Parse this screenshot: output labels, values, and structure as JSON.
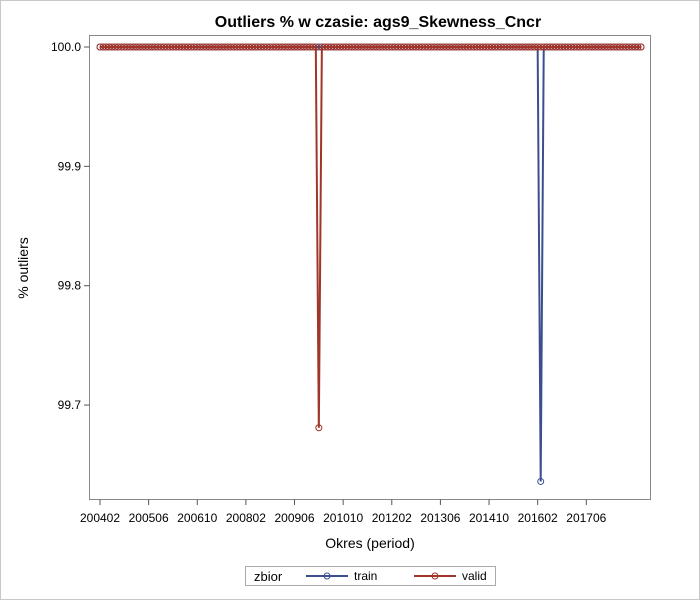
{
  "chart_data": {
    "type": "line",
    "title": "Outliers % w czasie: ags9_Skewness_Cncr",
    "xlabel": "Okres (period)",
    "ylabel": "% outliers",
    "x_tick_labels": [
      "200402",
      "200506",
      "200610",
      "200802",
      "200906",
      "201010",
      "201202",
      "201306",
      "201410",
      "201602",
      "201706"
    ],
    "y_tick_labels": [
      "99.7",
      "99.8",
      "99.9",
      "100.0"
    ],
    "ylim": [
      99.628,
      100.0
    ],
    "x_start": "200402",
    "x_end": "201812",
    "legend": {
      "title": "zbior",
      "placement": "bottom-center"
    },
    "grid": false,
    "series": [
      {
        "name": "train",
        "color": "#3b4f8f",
        "baseline": 100.0,
        "dips": [
          {
            "period": "201603",
            "value": 99.636
          }
        ]
      },
      {
        "name": "valid",
        "color": "#a0352a",
        "baseline": 100.0,
        "dips": [
          {
            "period": "201002",
            "value": 99.681
          }
        ]
      }
    ]
  }
}
